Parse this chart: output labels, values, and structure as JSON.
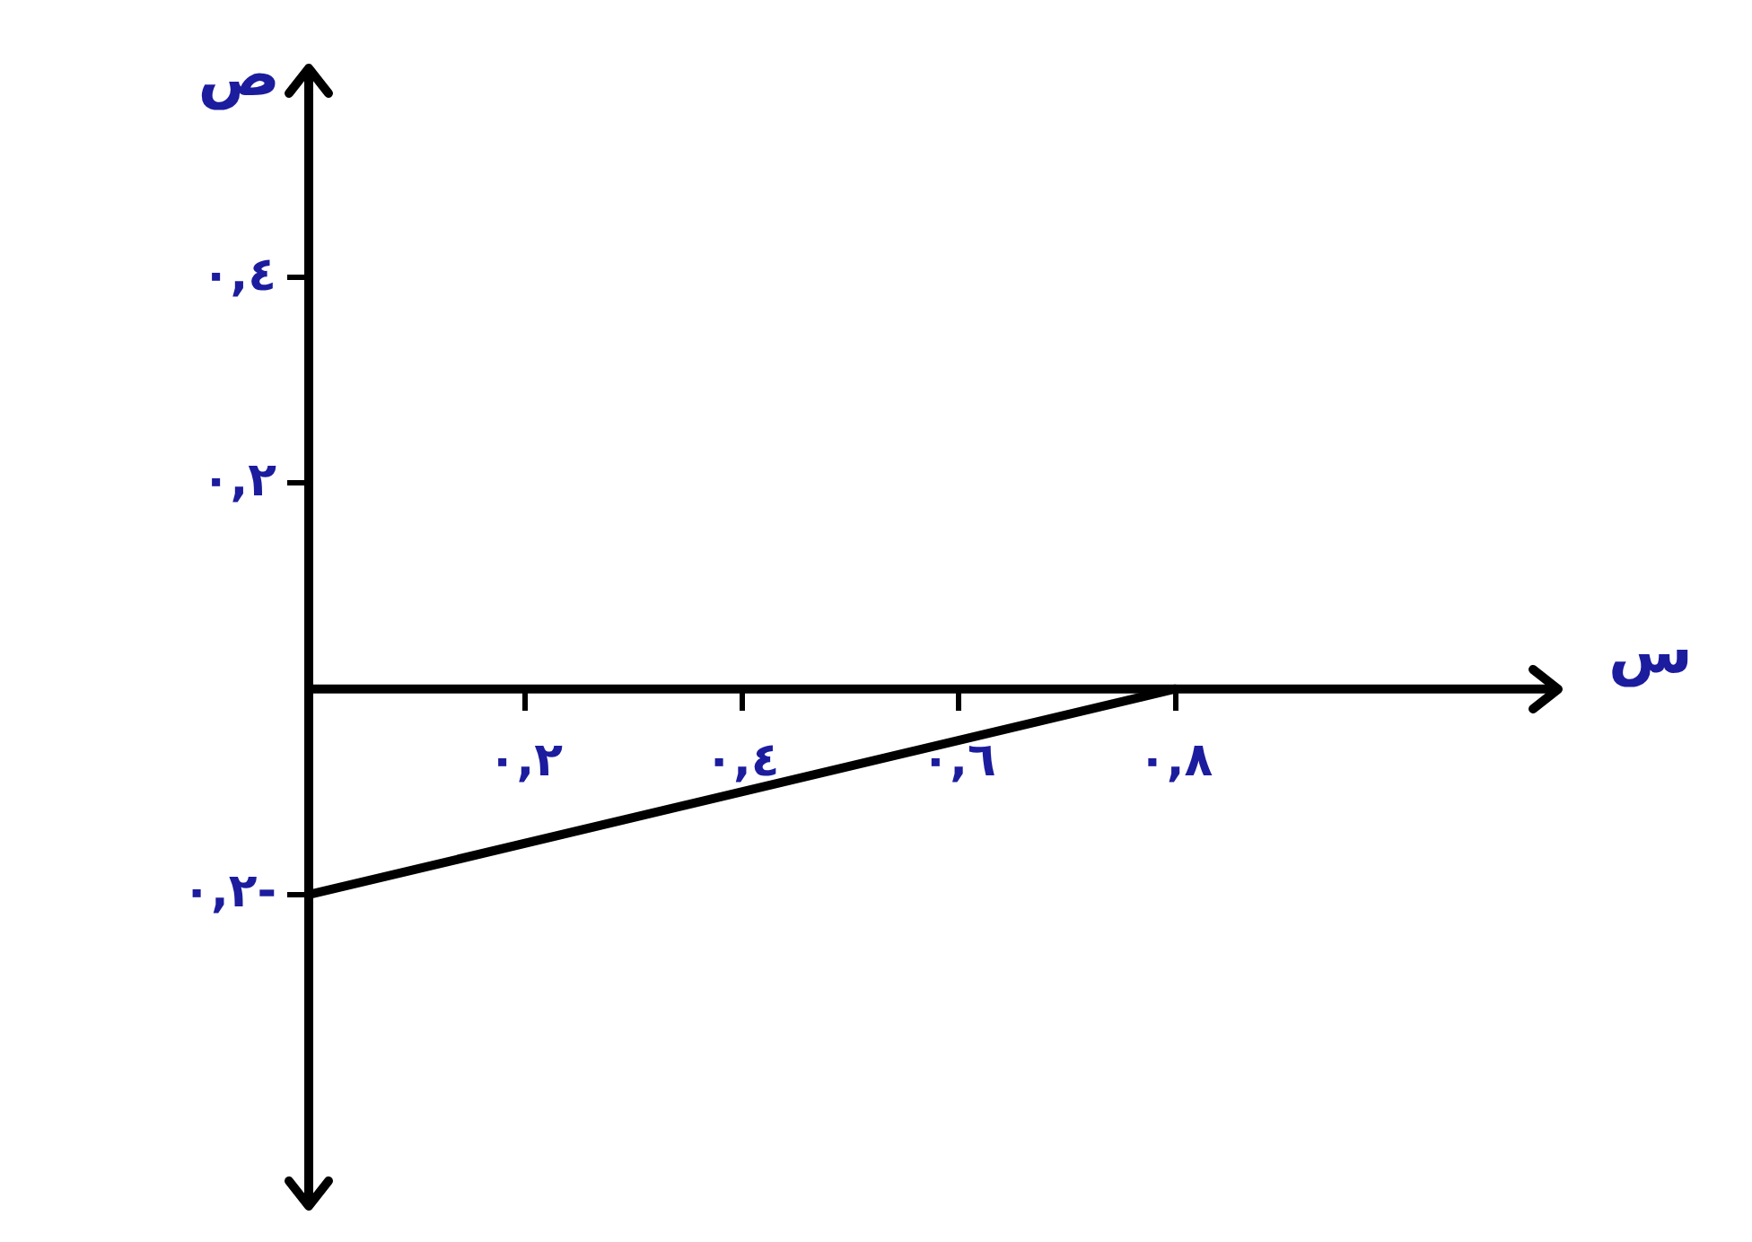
{
  "chart_data": {
    "type": "line",
    "xlabel": "س",
    "ylabel": "ص",
    "series": [
      {
        "color": "#000000",
        "x": [
          0,
          0.8
        ],
        "values": [
          -0.2,
          0
        ]
      }
    ],
    "xlim": [
      0,
      1.15
    ],
    "ylim": [
      -0.5,
      0.6
    ],
    "xticks": [
      {
        "value": 0.2,
        "label": "٠,٢"
      },
      {
        "value": 0.4,
        "label": "٠,٤"
      },
      {
        "value": 0.6,
        "label": "٠,٦"
      },
      {
        "value": 0.8,
        "label": "٠,٨"
      }
    ],
    "yticks": [
      {
        "value": -0.2,
        "label": "٠,٢-"
      },
      {
        "value": 0.2,
        "label": "٠,٢"
      },
      {
        "value": 0.4,
        "label": "٠,٤"
      }
    ],
    "grid": false,
    "legend": false,
    "marker": "none",
    "line_style": "solid"
  }
}
